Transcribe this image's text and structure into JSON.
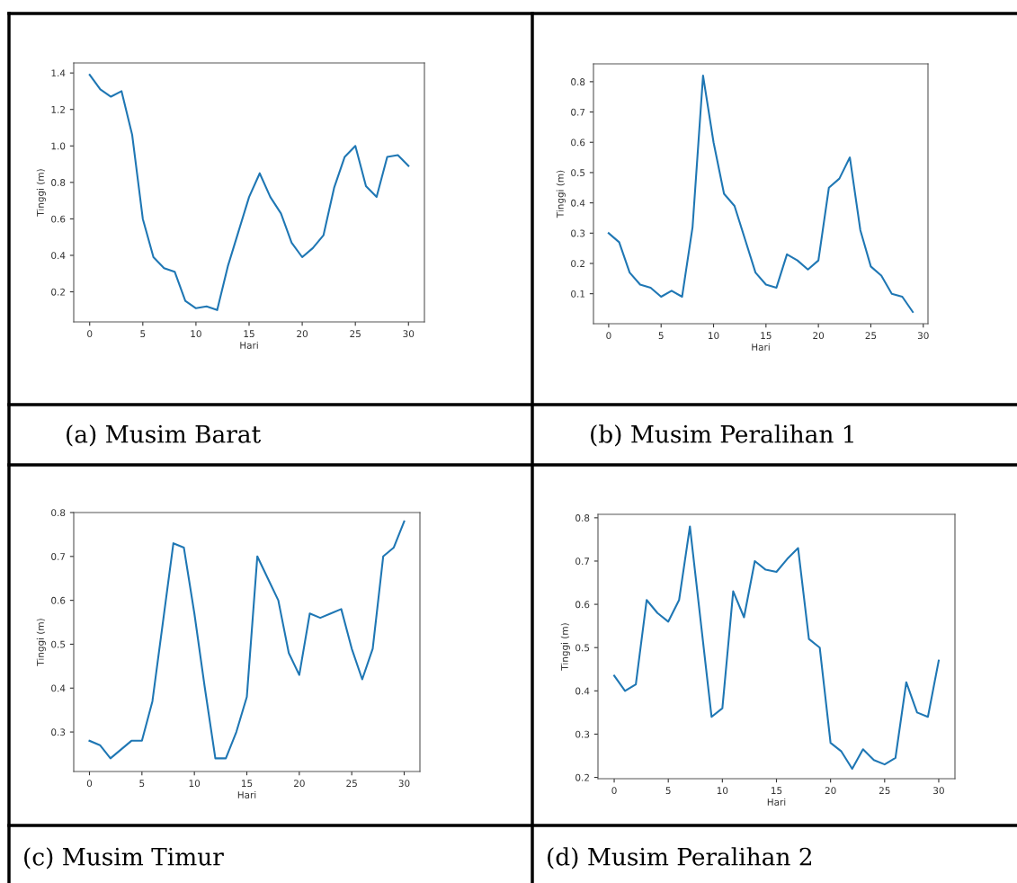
{
  "chart_data": [
    {
      "type": "line",
      "title": "(a) Musim Barat",
      "xlabel": "Hari",
      "ylabel": "Tinggi (m)",
      "color": "#1f77b4",
      "x": [
        0,
        1,
        2,
        3,
        4,
        5,
        6,
        7,
        8,
        9,
        10,
        11,
        12,
        13,
        14,
        15,
        16,
        17,
        18,
        19,
        20,
        21,
        22,
        23,
        24,
        25,
        26,
        27,
        28,
        29,
        30
      ],
      "values": [
        1.39,
        1.31,
        1.27,
        1.3,
        1.06,
        0.6,
        0.39,
        0.33,
        0.31,
        0.15,
        0.11,
        0.12,
        0.1,
        0.34,
        0.53,
        0.72,
        0.85,
        0.72,
        0.63,
        0.47,
        0.39,
        0.44,
        0.51,
        0.77,
        0.94,
        1.0,
        0.78,
        0.72,
        0.94,
        0.95,
        0.89
      ],
      "xlim": [
        -1.5,
        31.5
      ],
      "ylim": [
        0.035,
        1.455
      ],
      "xticks": [
        0,
        5,
        10,
        15,
        20,
        25,
        30
      ],
      "yticks": [
        0.2,
        0.4,
        0.6,
        0.8,
        {
          "value": 1,
          "label": "1.0"
        },
        1.2,
        1.4
      ]
    },
    {
      "type": "line",
      "title": "(b) Musim Peralihan 1",
      "xlabel": "Hari",
      "ylabel": "Tinggi (m)",
      "color": "#1f77b4",
      "x": [
        0,
        1,
        2,
        3,
        4,
        5,
        6,
        7,
        8,
        9,
        10,
        11,
        12,
        13,
        14,
        15,
        16,
        17,
        18,
        19,
        20,
        21,
        22,
        23,
        24,
        25,
        26,
        27,
        28,
        29
      ],
      "values": [
        0.3,
        0.27,
        0.17,
        0.13,
        0.12,
        0.09,
        0.11,
        0.09,
        0.32,
        0.82,
        0.6,
        0.43,
        0.39,
        0.28,
        0.17,
        0.13,
        0.12,
        0.23,
        0.21,
        0.18,
        0.21,
        0.45,
        0.48,
        0.55,
        0.31,
        0.19,
        0.16,
        0.1,
        0.09,
        0.04
      ],
      "xlim": [
        -1.45,
        30.45
      ],
      "ylim": [
        0.001,
        0.859
      ],
      "xticks": [
        0,
        5,
        10,
        15,
        20,
        25,
        30
      ],
      "yticks": [
        0.1,
        0.2,
        0.3,
        0.4,
        0.5,
        0.6,
        0.7,
        0.8
      ]
    },
    {
      "type": "line",
      "title": "(c) Musim Timur",
      "xlabel": "Hari",
      "ylabel": "Tinggi (m)",
      "color": "#1f77b4",
      "x": [
        0,
        1,
        2,
        3,
        4,
        5,
        6,
        7,
        8,
        9,
        10,
        11,
        12,
        13,
        14,
        15,
        16,
        17,
        18,
        19,
        20,
        21,
        22,
        23,
        24,
        25,
        26,
        27,
        28,
        29,
        30
      ],
      "values": [
        0.28,
        0.27,
        0.24,
        0.26,
        0.28,
        0.28,
        0.37,
        0.55,
        0.73,
        0.72,
        0.57,
        0.4,
        0.24,
        0.24,
        0.3,
        0.38,
        0.7,
        0.65,
        0.6,
        0.48,
        0.43,
        0.57,
        0.56,
        0.57,
        0.58,
        0.49,
        0.42,
        0.49,
        0.7,
        0.72,
        0.78
      ],
      "xlim": [
        -1.5,
        31.5
      ],
      "ylim": [
        0.21,
        0.8
      ],
      "xticks": [
        0,
        5,
        10,
        15,
        20,
        25,
        30
      ],
      "yticks": [
        0.3,
        0.4,
        0.5,
        0.6,
        0.7,
        0.8
      ]
    },
    {
      "type": "line",
      "title": "(d) Musim Peralihan 2",
      "xlabel": "Hari",
      "ylabel": "Tinggi (m)",
      "color": "#1f77b4",
      "x": [
        0,
        1,
        2,
        3,
        4,
        5,
        6,
        7,
        8,
        9,
        10,
        11,
        12,
        13,
        14,
        15,
        16,
        17,
        18,
        19,
        20,
        21,
        22,
        23,
        24,
        25,
        26,
        27,
        28,
        29,
        30
      ],
      "values": [
        0.435,
        0.4,
        0.415,
        0.61,
        0.58,
        0.56,
        0.61,
        0.78,
        0.56,
        0.34,
        0.36,
        0.63,
        0.57,
        0.7,
        0.68,
        0.675,
        0.705,
        0.73,
        0.52,
        0.5,
        0.28,
        0.26,
        0.22,
        0.265,
        0.24,
        0.23,
        0.245,
        0.42,
        0.35,
        0.34,
        0.47
      ],
      "xlim": [
        -1.5,
        31.5
      ],
      "ylim": [
        0.197,
        0.808
      ],
      "xticks": [
        0,
        5,
        10,
        15,
        20,
        25,
        30
      ],
      "yticks": [
        0.2,
        0.3,
        0.4,
        0.5,
        0.6,
        0.7,
        0.8
      ]
    }
  ]
}
